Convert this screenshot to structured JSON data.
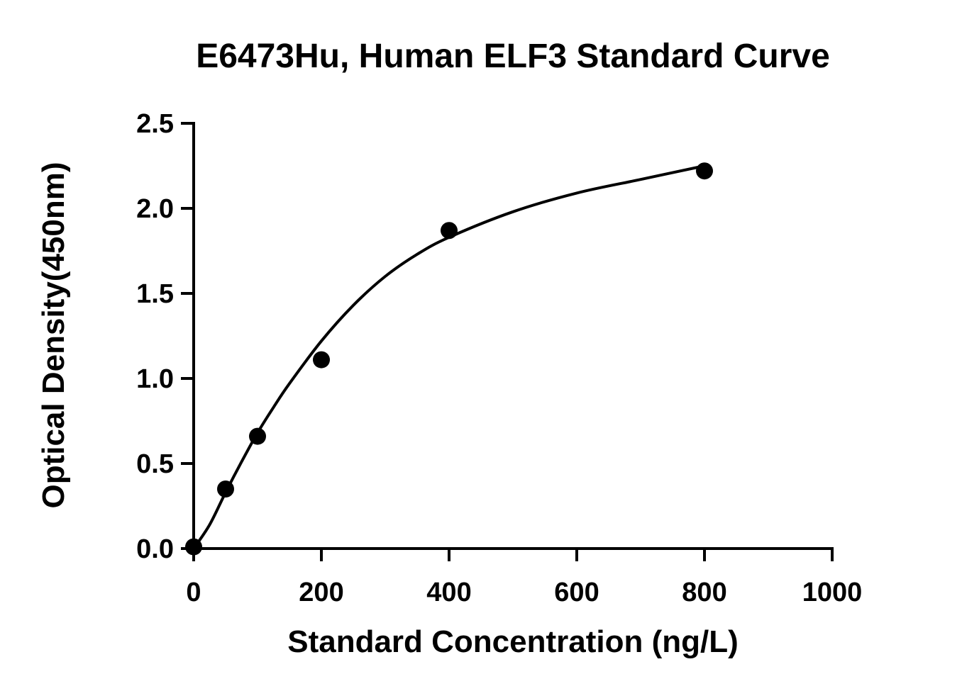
{
  "chart_data": {
    "type": "scatter",
    "title": "E6473Hu, Human ELF3 Standard Curve",
    "xlabel": "Standard Concentration (ng/L)",
    "ylabel": "Optical Density(450nm)",
    "xlim": [
      0,
      1000
    ],
    "ylim": [
      0,
      2.5
    ],
    "x_ticks": [
      0,
      200,
      400,
      600,
      800,
      1000
    ],
    "x_tick_labels": [
      "0",
      "200",
      "400",
      "600",
      "800",
      "1000"
    ],
    "y_ticks": [
      0,
      0.5,
      1.0,
      1.5,
      2.0,
      2.5
    ],
    "y_tick_labels": [
      "0.0",
      "0.5",
      "1.0",
      "1.5",
      "2.0",
      "2.5"
    ],
    "grid": false,
    "series": [
      {
        "x": [
          0,
          50,
          100,
          200,
          400,
          800
        ],
        "y": [
          0.01,
          0.35,
          0.66,
          1.11,
          1.87,
          2.22
        ]
      }
    ],
    "fit_curve": {
      "x": [
        0,
        25,
        50,
        75,
        100,
        125,
        150,
        200,
        250,
        300,
        350,
        400,
        500,
        600,
        700,
        800
      ],
      "y": [
        0.0,
        0.14,
        0.33,
        0.51,
        0.68,
        0.83,
        0.97,
        1.22,
        1.43,
        1.6,
        1.73,
        1.83,
        1.98,
        2.09,
        2.17,
        2.25
      ]
    }
  }
}
